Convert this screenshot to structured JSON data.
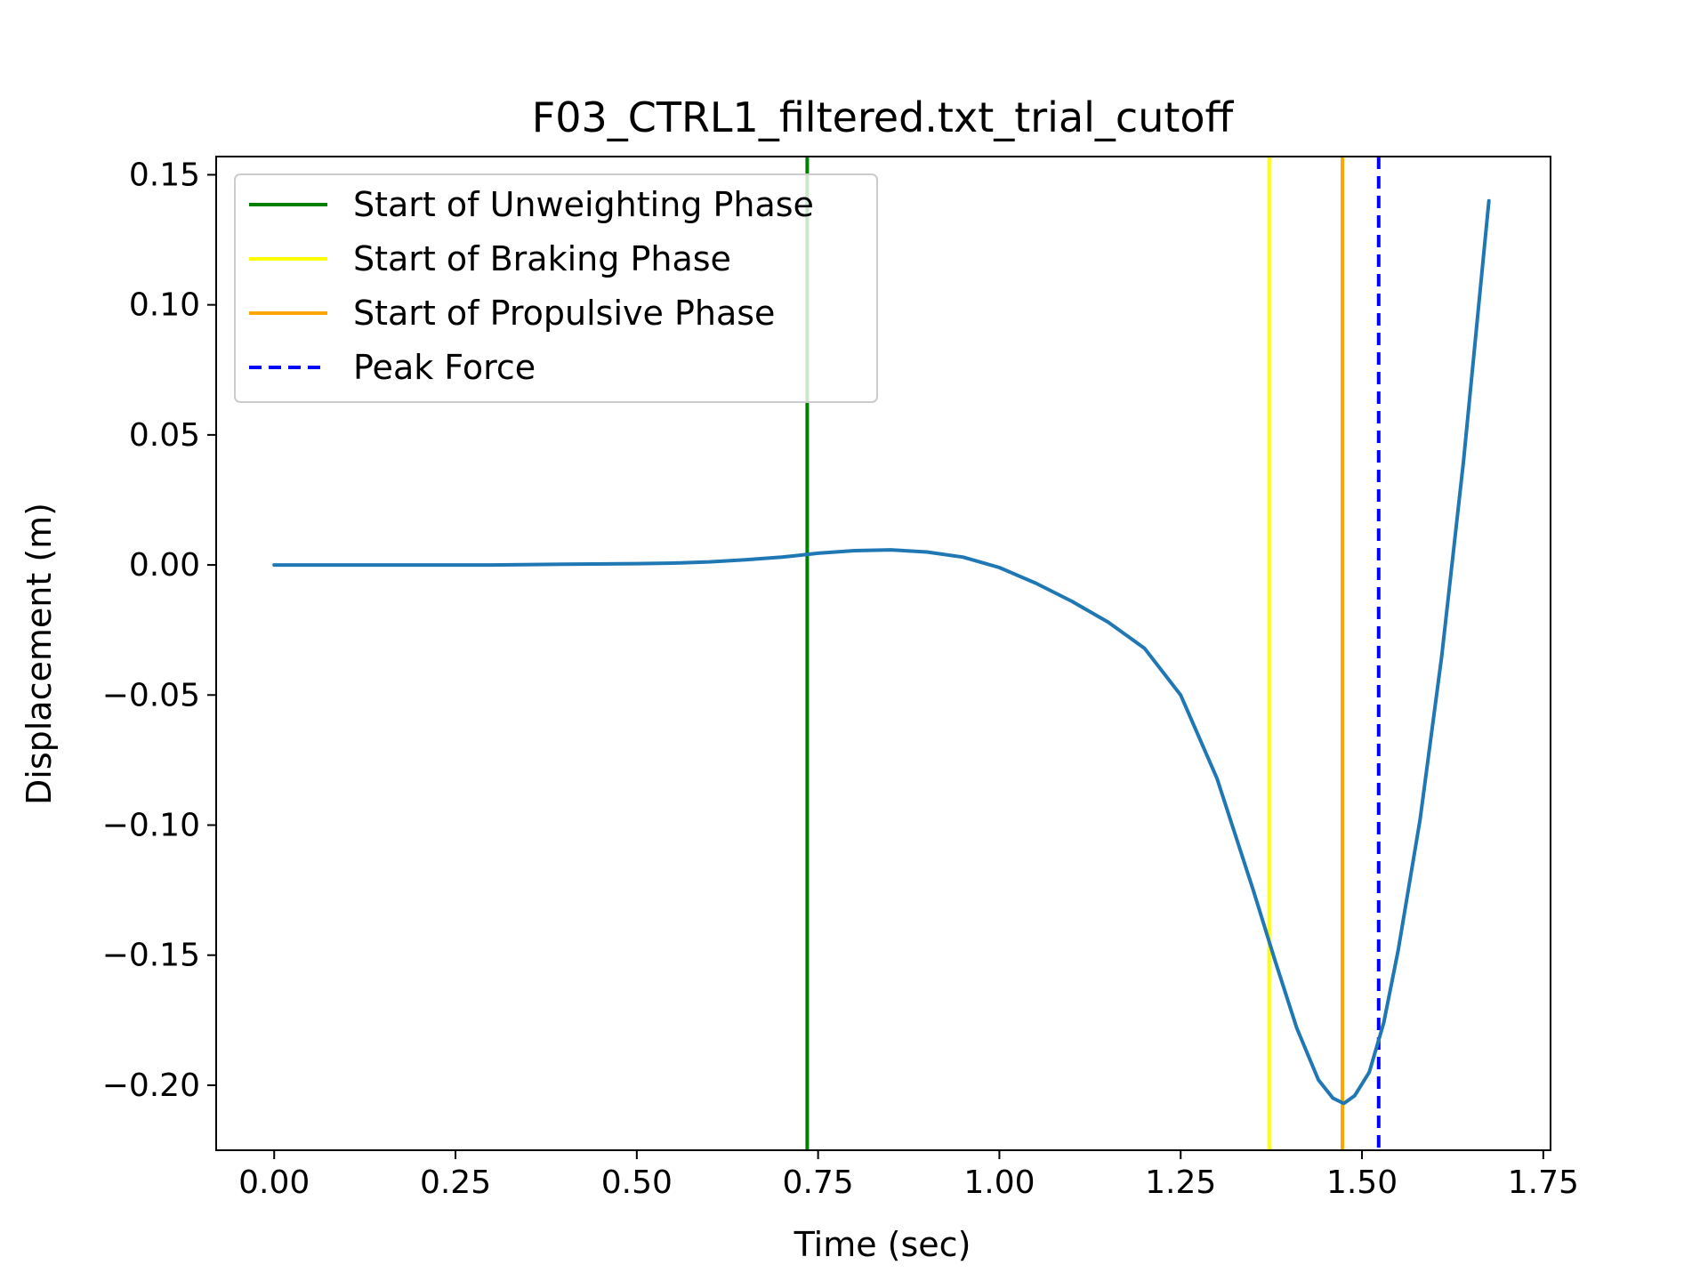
{
  "chart_data": {
    "type": "line",
    "title": "F03_CTRL1_filtered.txt_trial_cutoff",
    "xlabel": "Time (sec)",
    "ylabel": "Displacement (m)",
    "xlim": [
      -0.08,
      1.76
    ],
    "ylim": [
      -0.225,
      0.157
    ],
    "xticks": [
      0.0,
      0.25,
      0.5,
      0.75,
      1.0,
      1.25,
      1.5,
      1.75
    ],
    "xtick_labels": [
      "0.00",
      "0.25",
      "0.50",
      "0.75",
      "1.00",
      "1.25",
      "1.50",
      "1.75"
    ],
    "yticks": [
      0.15,
      0.1,
      0.05,
      0.0,
      -0.05,
      -0.1,
      -0.15,
      -0.2
    ],
    "ytick_labels": [
      "0.15",
      "0.10",
      "0.05",
      "0.00",
      "−0.05",
      "−0.10",
      "−0.15",
      "−0.20"
    ],
    "grid": false,
    "legend_position": "top-left",
    "series": [
      {
        "color": "#1f77b4",
        "x": [
          0.0,
          0.1,
          0.2,
          0.3,
          0.4,
          0.5,
          0.55,
          0.6,
          0.65,
          0.7,
          0.75,
          0.8,
          0.85,
          0.9,
          0.95,
          1.0,
          1.05,
          1.1,
          1.15,
          1.2,
          1.25,
          1.3,
          1.35,
          1.38,
          1.41,
          1.44,
          1.46,
          1.475,
          1.49,
          1.51,
          1.53,
          1.55,
          1.58,
          1.61,
          1.64,
          1.675
        ],
        "y": [
          0.0,
          0.0,
          0.0,
          0.0,
          0.0003,
          0.0005,
          0.0007,
          0.0012,
          0.002,
          0.003,
          0.0045,
          0.0055,
          0.0058,
          0.005,
          0.003,
          -0.001,
          -0.007,
          -0.014,
          -0.022,
          -0.032,
          -0.05,
          -0.082,
          -0.125,
          -0.152,
          -0.178,
          -0.198,
          -0.205,
          -0.207,
          -0.204,
          -0.195,
          -0.176,
          -0.148,
          -0.098,
          -0.035,
          0.04,
          0.14
        ]
      }
    ],
    "vlines": [
      {
        "name": "Start of Unweighting Phase",
        "x": 0.735,
        "color": "#008000",
        "dash": "solid"
      },
      {
        "name": "Start of Braking Phase",
        "x": 1.372,
        "color": "#ffff00",
        "dash": "solid"
      },
      {
        "name": "Start of Propulsive Phase",
        "x": 1.473,
        "color": "#ffa500",
        "dash": "solid"
      },
      {
        "name": "Peak Force",
        "x": 1.523,
        "color": "#0000ff",
        "dash": "dashed"
      }
    ]
  }
}
